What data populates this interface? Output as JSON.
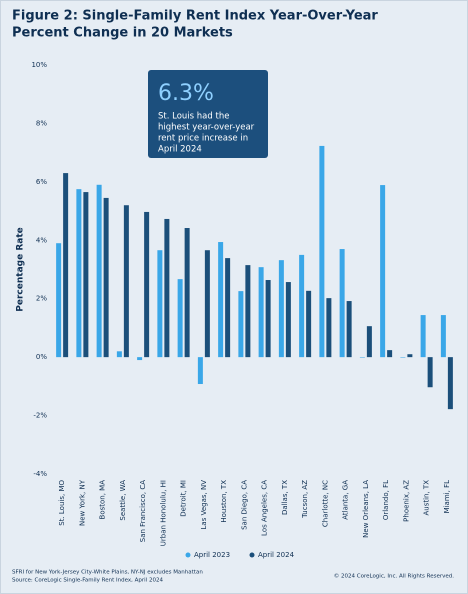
{
  "chart_data": {
    "type": "bar",
    "title": [
      "Figure 2: Single-Family Rent Index Year-Over-Year",
      "Percent Change in 20 Markets"
    ],
    "y_label": "Percentage Rate",
    "annotation": {
      "headline": "6.3%",
      "text": [
        "St. Louis had the",
        "highest year-over-year",
        "rent price increase in",
        "April 2024"
      ]
    },
    "categories": [
      "St. Louis, MO",
      "New York, NY",
      "Boston, MA",
      "Seattle, WA",
      "San Francisco, CA",
      "Urban Honolulu, HI",
      "Detroit, MI",
      "Las Vegas, NV",
      "Houston, TX",
      "San Diego, CA",
      "Los Angeles, CA",
      "Dallas, TX",
      "Tucson, AZ",
      "Charlotte, NC",
      "Atlanta, GA",
      "New Orleans, LA",
      "Orlando, FL",
      "Phoenix, AZ",
      "Austin, TX",
      "Miami, FL"
    ],
    "series": [
      {
        "name": "April 2023",
        "color": "#3aa7e8",
        "values": [
          3.9,
          5.75,
          5.9,
          0.2,
          -0.1,
          3.66,
          2.67,
          -0.92,
          3.94,
          2.26,
          3.08,
          3.32,
          3.5,
          7.23,
          3.7,
          0,
          5.89,
          0,
          1.44,
          1.44
        ]
      },
      {
        "name": "April 2024",
        "color": "#1b4f7a",
        "values": [
          6.3,
          5.65,
          5.45,
          5.2,
          4.97,
          4.73,
          4.42,
          3.66,
          3.39,
          3.15,
          2.64,
          2.57,
          2.27,
          2.02,
          1.92,
          1.06,
          0.24,
          0.1,
          -1.03,
          -1.78
        ]
      }
    ],
    "ylim": [
      -4,
      10
    ],
    "yticks": [
      {
        "value": -4,
        "label": "-4%"
      },
      {
        "value": -2,
        "label": "-2%"
      },
      {
        "value": 0,
        "label": "0%"
      },
      {
        "value": 2,
        "label": "2%"
      },
      {
        "value": 4,
        "label": "4%"
      },
      {
        "value": 6,
        "label": "6%"
      },
      {
        "value": 8,
        "label": "8%"
      },
      {
        "value": 10,
        "label": "10%"
      }
    ],
    "notes": [
      "SFRI for New York-Jersey City-White Plains, NY-NJ excludes Manhattan",
      "Source: CoreLogic Single-Family Rent Index, April 2024"
    ],
    "copyright": "© 2024 CoreLogic, Inc. All Rights Reserved."
  }
}
